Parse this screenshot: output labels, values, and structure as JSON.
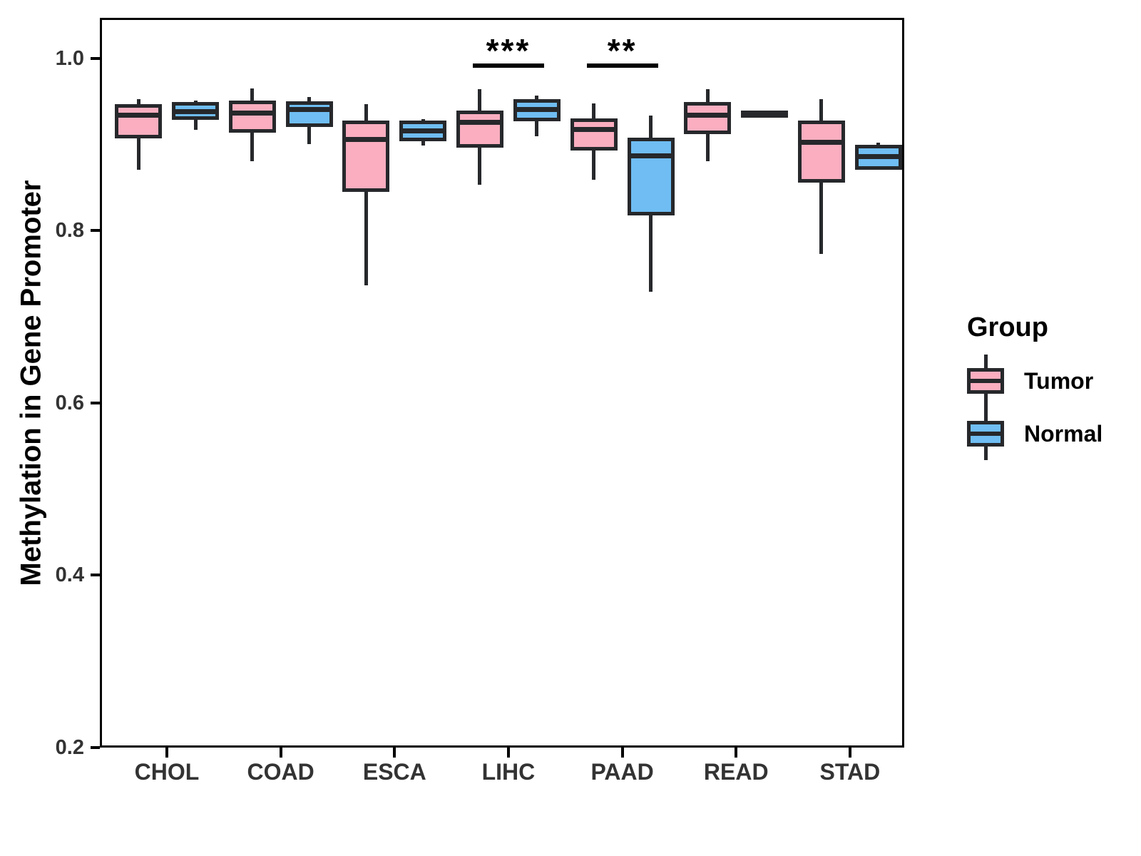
{
  "chart_data": {
    "type": "boxplot",
    "title": "",
    "xlabel": "",
    "ylabel": "Methylation in Gene Promoter",
    "legend_title": "Group",
    "legend_position": "right",
    "grid": false,
    "categories": [
      "CHOL",
      "COAD",
      "ESCA",
      "LIHC",
      "PAAD",
      "READ",
      "STAD"
    ],
    "ylim": [
      0.2,
      1.047
    ],
    "y_axis": {
      "ticks": [
        {
          "value": 1.0,
          "label": "1.0"
        },
        {
          "value": 0.8,
          "label": "0.8"
        },
        {
          "value": 0.6,
          "label": "0.6"
        },
        {
          "value": 0.4,
          "label": "0.4"
        },
        {
          "value": 0.2,
          "label": "0.2"
        }
      ]
    },
    "groups": [
      {
        "name": "Tumor",
        "color": "#FAAEC0"
      },
      {
        "name": "Normal",
        "color": "#6FBDF3"
      }
    ],
    "series": [
      {
        "name": "Tumor",
        "color": "#FAAEC0",
        "boxes": [
          {
            "category": "CHOL",
            "min": 0.871,
            "q1": 0.911,
            "median": 0.934,
            "q3": 0.943,
            "max": 0.953
          },
          {
            "category": "COAD",
            "min": 0.881,
            "q1": 0.918,
            "median": 0.937,
            "q3": 0.947,
            "max": 0.965
          },
          {
            "category": "ESCA",
            "min": 0.737,
            "q1": 0.849,
            "median": 0.906,
            "q3": 0.924,
            "max": 0.947
          },
          {
            "category": "LIHC",
            "min": 0.853,
            "q1": 0.901,
            "median": 0.926,
            "q3": 0.935,
            "max": 0.964
          },
          {
            "category": "PAAD",
            "min": 0.859,
            "q1": 0.897,
            "median": 0.918,
            "q3": 0.926,
            "max": 0.948
          },
          {
            "category": "READ",
            "min": 0.881,
            "q1": 0.916,
            "median": 0.934,
            "q3": 0.945,
            "max": 0.964
          },
          {
            "category": "STAD",
            "min": 0.773,
            "q1": 0.86,
            "median": 0.903,
            "q3": 0.924,
            "max": 0.953
          }
        ]
      },
      {
        "name": "Normal",
        "color": "#6FBDF3",
        "boxes": [
          {
            "category": "CHOL",
            "min": 0.917,
            "q1": 0.933,
            "median": 0.938,
            "q3": 0.945,
            "max": 0.951
          },
          {
            "category": "COAD",
            "min": 0.901,
            "q1": 0.925,
            "median": 0.941,
            "q3": 0.946,
            "max": 0.955
          },
          {
            "category": "ESCA",
            "min": 0.899,
            "q1": 0.908,
            "median": 0.916,
            "q3": 0.924,
            "max": 0.93
          },
          {
            "category": "LIHC",
            "min": 0.91,
            "q1": 0.931,
            "median": 0.941,
            "q3": 0.949,
            "max": 0.957
          },
          {
            "category": "PAAD",
            "min": 0.729,
            "q1": 0.822,
            "median": 0.887,
            "q3": 0.904,
            "max": 0.934
          },
          {
            "category": "READ",
            "min": 0.935,
            "q1": 0.935,
            "median": 0.935,
            "q3": 0.935,
            "max": 0.935
          },
          {
            "category": "STAD",
            "min": 0.871,
            "q1": 0.875,
            "median": 0.886,
            "q3": 0.896,
            "max": 0.902
          }
        ]
      }
    ],
    "annotations": [
      {
        "category": "LIHC",
        "label": "***",
        "bar_y": 0.992
      },
      {
        "category": "PAAD",
        "label": "**",
        "bar_y": 0.992
      }
    ],
    "colors": {
      "box_border": "#26282B",
      "axis": "#000000",
      "tick_label": "#333333"
    }
  }
}
